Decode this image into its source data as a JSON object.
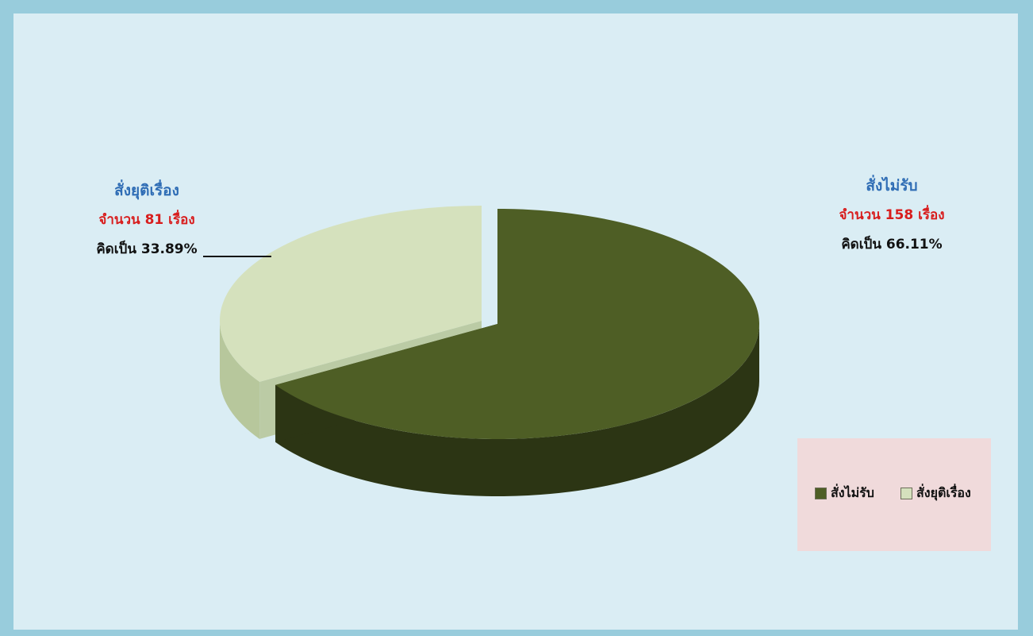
{
  "chart_data": {
    "type": "pie",
    "three_d": true,
    "exploded": true,
    "slices": [
      {
        "name": "สั่งไม่รับ",
        "count": 158,
        "percent": 66.11,
        "count_text": "จำนวน 158 เรื่อง",
        "percent_text": "คิดเป็น 66.11%",
        "color": "#4e5e25",
        "side_color": "#2c3514",
        "label_color": "#2f6db5"
      },
      {
        "name": "สั่งยุติเรื่อง",
        "count": 81,
        "percent": 33.89,
        "count_text": "จำนวน 81 เรื่อง",
        "percent_text": "คิดเป็น 33.89%",
        "color": "#d5e1bd",
        "side_color": "#b7c79c",
        "label_color": "#2f6db5"
      }
    ],
    "legend": {
      "position": "bottom-right",
      "background": "#f0dadb"
    }
  },
  "colors": {
    "frame": "#98ccdc",
    "background": "#daedf4",
    "count_text": "#d81d1d"
  }
}
